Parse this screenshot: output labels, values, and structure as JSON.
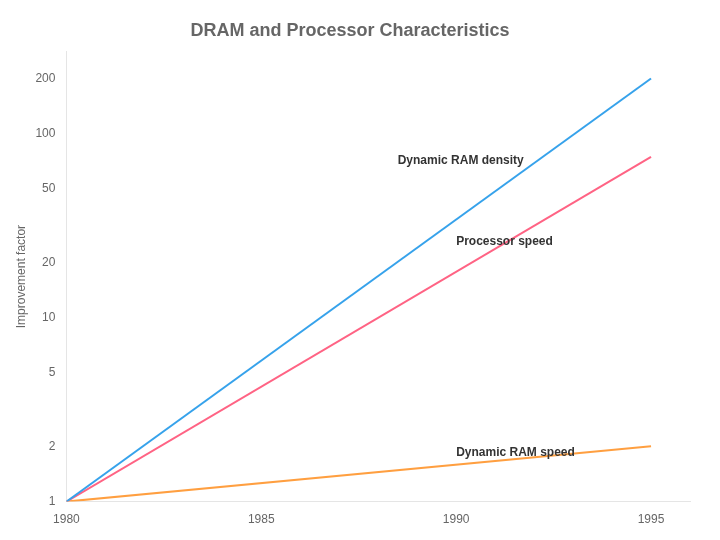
{
  "chart_data": {
    "type": "line",
    "title": "DRAM and Processor Characteristics",
    "y_label": "Improvement factor",
    "log": "y",
    "grid": false,
    "xlim": [
      1980,
      1996
    ],
    "xticks": [
      1980,
      1985,
      1990,
      1995
    ],
    "ylim": [
      1,
      280
    ],
    "yticks": [
      1,
      2,
      5,
      10,
      20,
      50,
      100,
      200
    ],
    "x": [
      1980,
      1995
    ],
    "series": [
      {
        "name": "Dynamic RAM density",
        "values": [
          1,
          199.986186
        ]
      },
      {
        "name": "Processor speed",
        "values": [
          1,
          74.9894209
        ]
      },
      {
        "name": "Dynamic RAM speed",
        "values": [
          1,
          1.99986187
        ]
      }
    ],
    "annotations": [
      {
        "text": "Dynamic RAM density",
        "x": 1988.5,
        "y": 66.0693448
      },
      {
        "text": "Processor speed",
        "x": 1990.0,
        "y": 23.9883292
      },
      {
        "text": "Dynamic RAM speed",
        "x": 1990.0,
        "y": 1.69824365
      }
    ]
  }
}
